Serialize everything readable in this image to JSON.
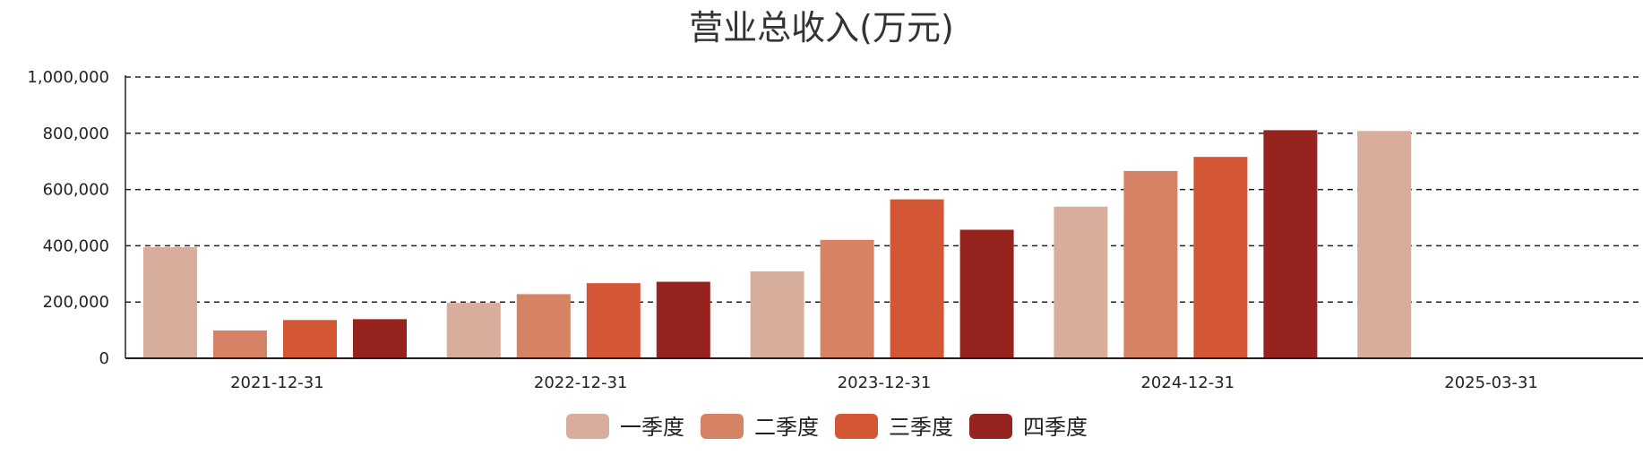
{
  "chart_data": {
    "type": "bar",
    "title": "营业总收入(万元)",
    "xlabel": "",
    "ylabel": "",
    "categories": [
      "2021-12-31",
      "2022-12-31",
      "2023-12-31",
      "2024-12-31",
      "2025-03-31"
    ],
    "series": [
      {
        "name": "一季度",
        "color": "#d9ad9b",
        "values": [
          395000,
          197000,
          309000,
          539000,
          808000
        ]
      },
      {
        "name": "二季度",
        "color": "#d58265",
        "values": [
          99000,
          228000,
          421000,
          666000,
          null
        ]
      },
      {
        "name": "三季度",
        "color": "#d45735",
        "values": [
          136000,
          267000,
          565000,
          716000,
          null
        ]
      },
      {
        "name": "四季度",
        "color": "#97231f",
        "values": [
          139000,
          272000,
          457000,
          811000,
          null
        ]
      }
    ],
    "ylim": [
      0,
      1000000
    ],
    "yticks": [
      0,
      200000,
      400000,
      600000,
      800000,
      1000000
    ],
    "ytick_labels": [
      "0",
      "200,000",
      "400,000",
      "600,000",
      "800,000",
      "1,000,000"
    ],
    "grid": "horizontal dashed",
    "legend_position": "bottom-center"
  }
}
